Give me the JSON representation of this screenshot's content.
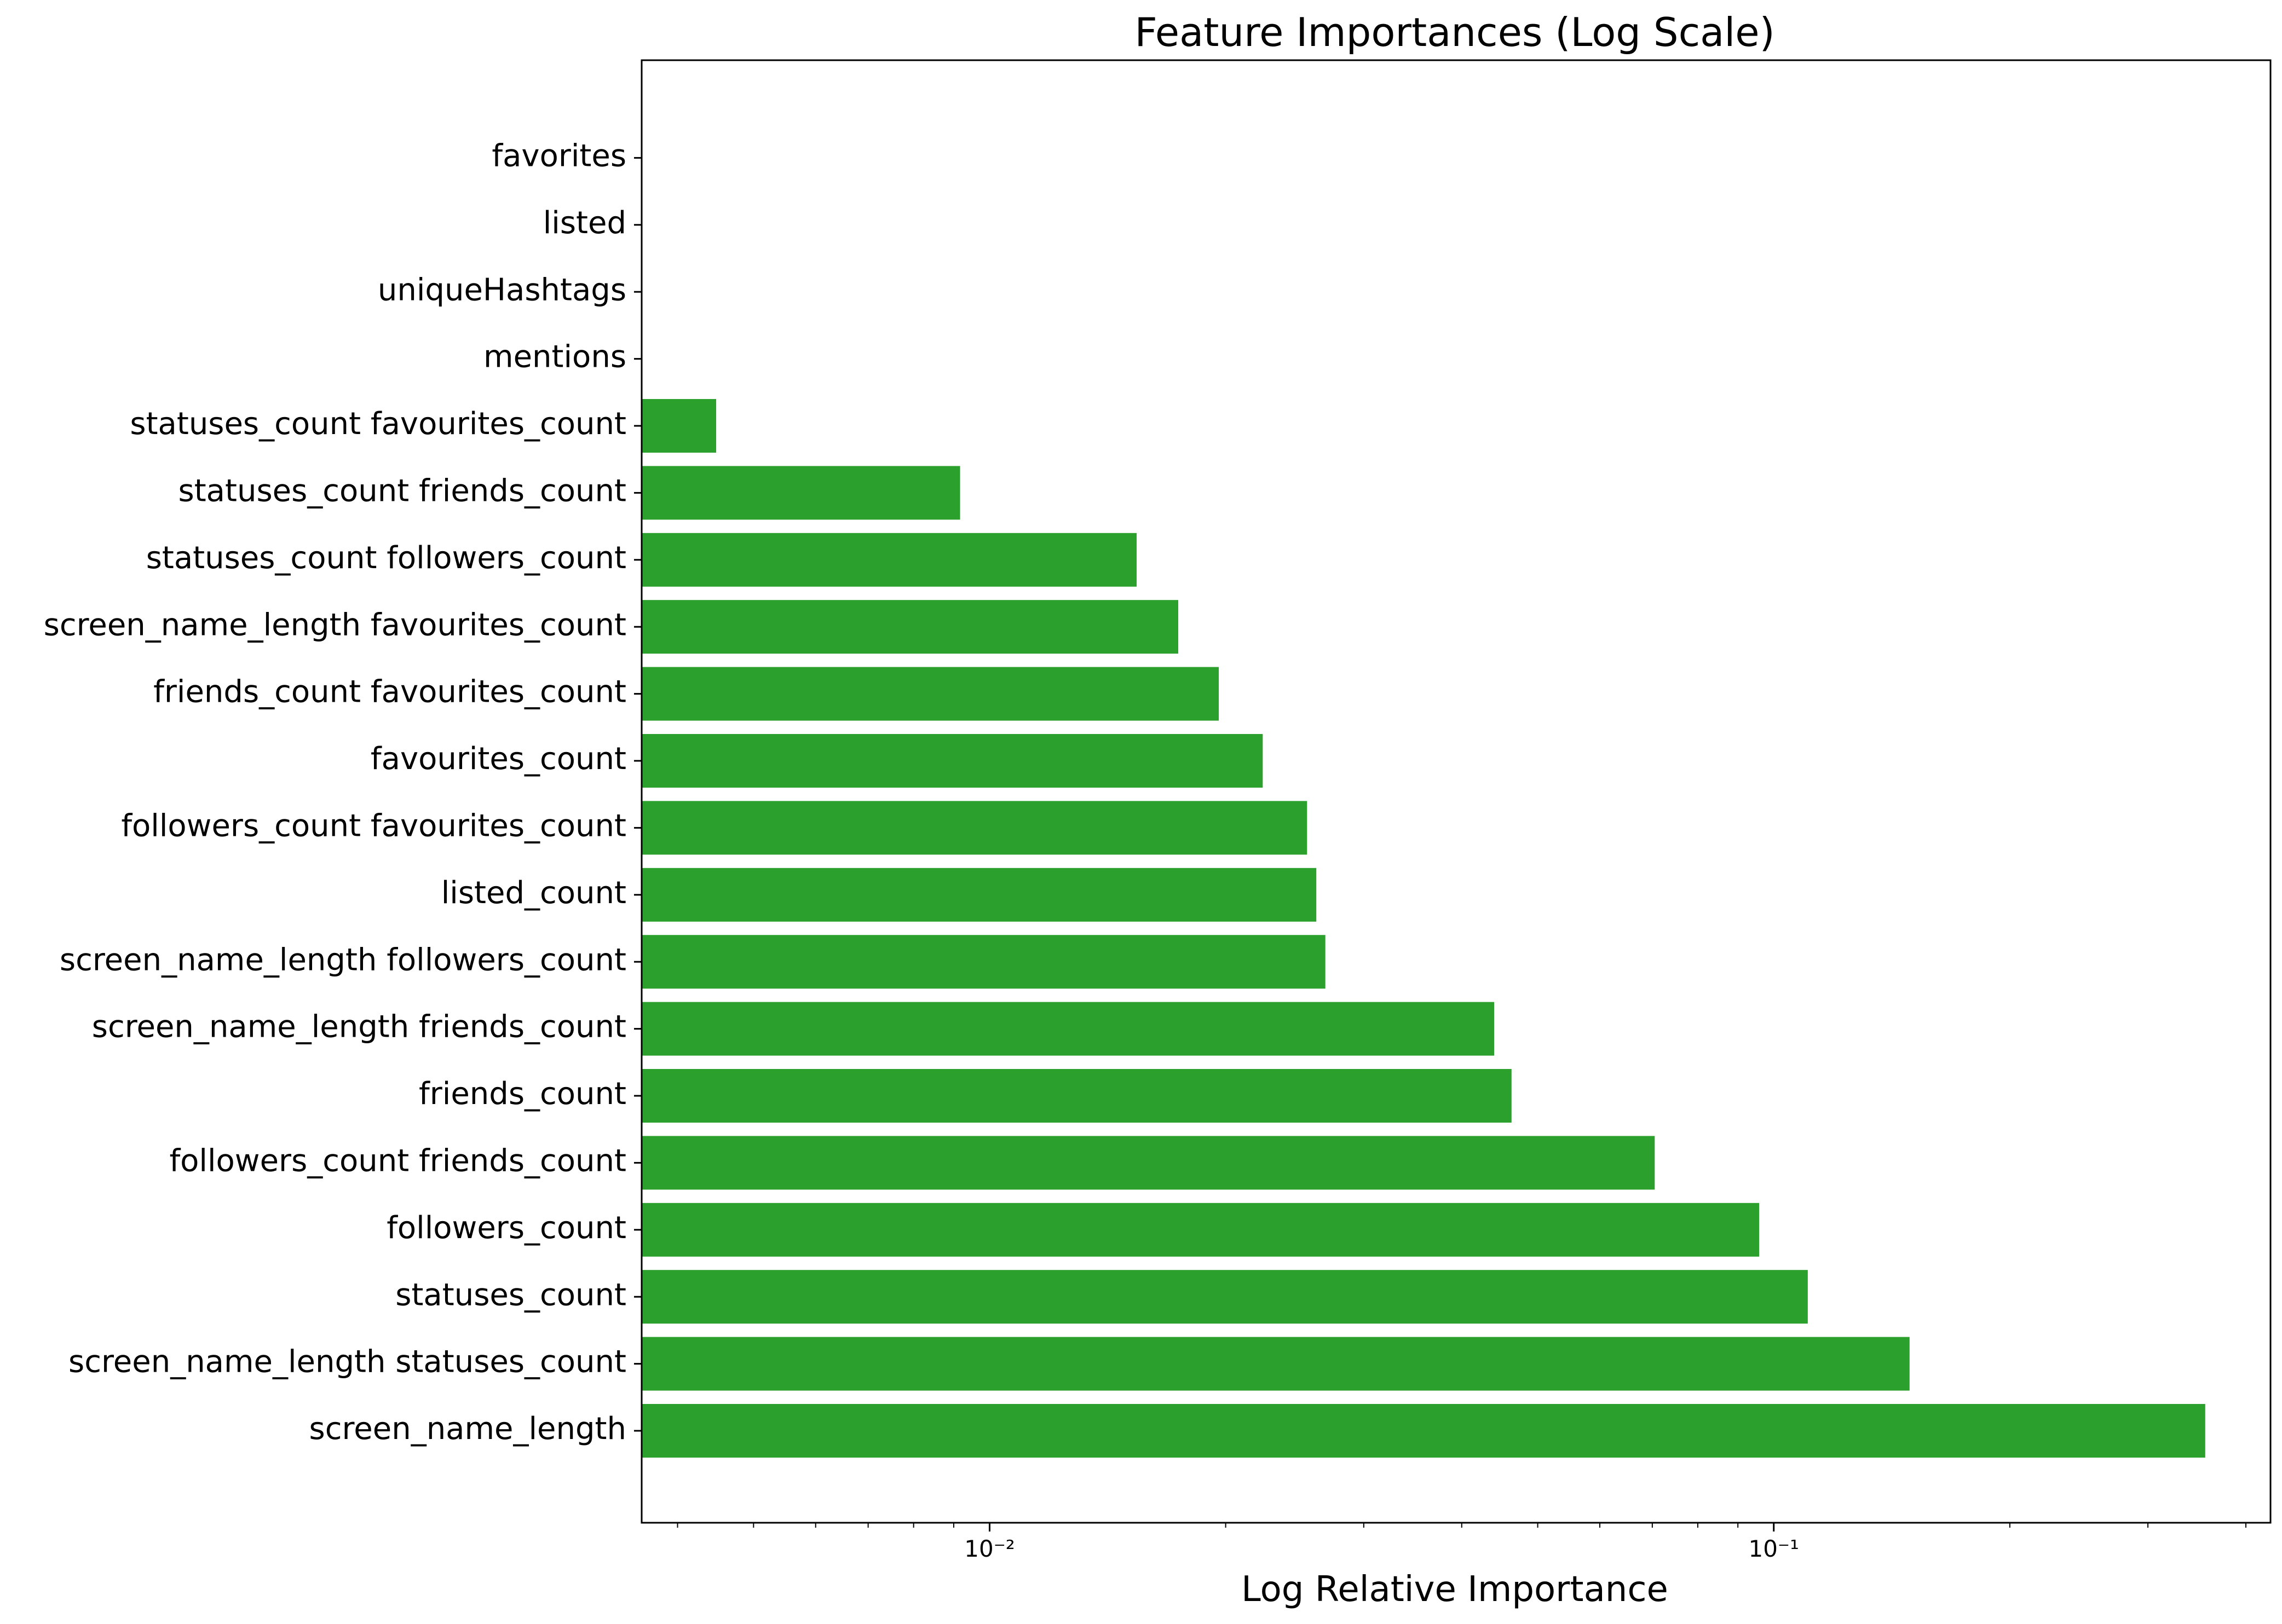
{
  "chart_data": {
    "type": "bar",
    "orientation": "horizontal",
    "title": "Feature Importances (Log Scale)",
    "xlabel": "Log Relative Importance",
    "ylabel": "",
    "xscale": "log",
    "xlim": [
      0.0036,
      0.43
    ],
    "grid": false,
    "bar_color": "#2ca02c",
    "xticks": [
      {
        "value": 0.01,
        "label": "10⁻²"
      },
      {
        "value": 0.1,
        "label": "10⁻¹"
      }
    ],
    "categories": [
      "screen_name_length",
      "screen_name_length statuses_count",
      "statuses_count",
      "followers_count",
      "followers_count friends_count",
      "friends_count",
      "screen_name_length friends_count",
      "screen_name_length followers_count",
      "listed_count",
      "followers_count favourites_count",
      "favourites_count",
      "friends_count favourites_count",
      "screen_name_length favourites_count",
      "statuses_count followers_count",
      "statuses_count friends_count",
      "statuses_count favourites_count",
      "mentions",
      "uniqueHashtags",
      "listed",
      "favorites"
    ],
    "values": [
      0.355,
      0.149,
      0.1105,
      0.0958,
      0.0705,
      0.0463,
      0.044,
      0.0268,
      0.0261,
      0.0254,
      0.0223,
      0.0196,
      0.0174,
      0.0154,
      0.00917,
      0.00448,
      0,
      0,
      0,
      0
    ]
  }
}
